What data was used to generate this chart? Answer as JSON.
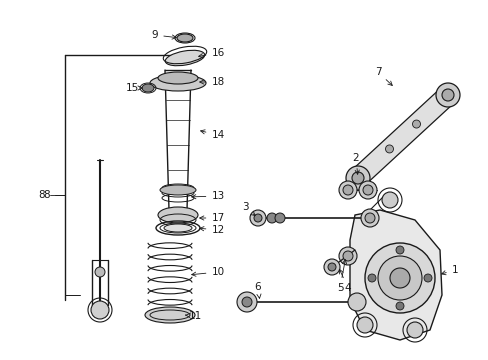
{
  "bg_color": "#ffffff",
  "line_color": "#1a1a1a",
  "fig_width": 4.89,
  "fig_height": 3.6,
  "dpi": 100,
  "font_size": 7.5,
  "lw_main": 1.0,
  "lw_thin": 0.6
}
